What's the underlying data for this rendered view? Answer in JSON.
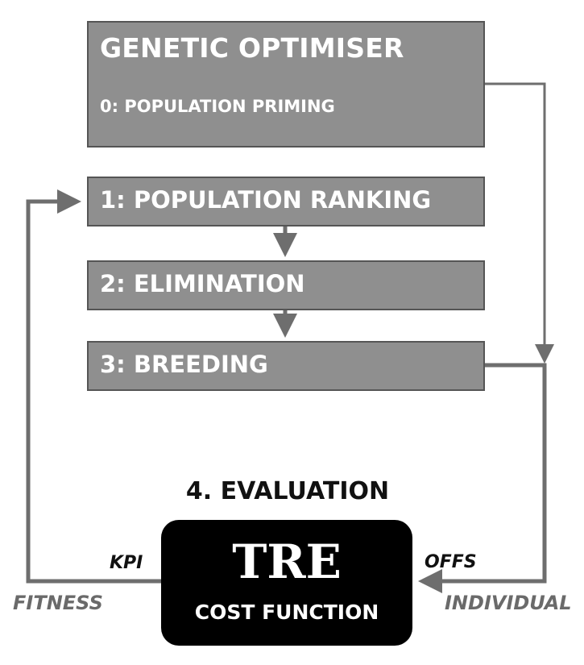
{
  "optimiser": {
    "title": "GENETIC OPTIMISER",
    "step0": "0: POPULATION PRIMING"
  },
  "steps": [
    "1: POPULATION RANKING",
    "2: ELIMINATION",
    "3: BREEDING"
  ],
  "evaluation": {
    "heading": "4. EVALUATION",
    "title": "TRE",
    "subtitle": "COST FUNCTION"
  },
  "labels": {
    "kpi": "KPI",
    "offs": "OFFS",
    "fitness": "FITNESS",
    "individual": "INDIVIDUAL"
  },
  "colors": {
    "box_fill": "#8f8f8f",
    "box_border": "#555555",
    "arrow": "#6e6e6e",
    "cost_box": "#000000"
  }
}
